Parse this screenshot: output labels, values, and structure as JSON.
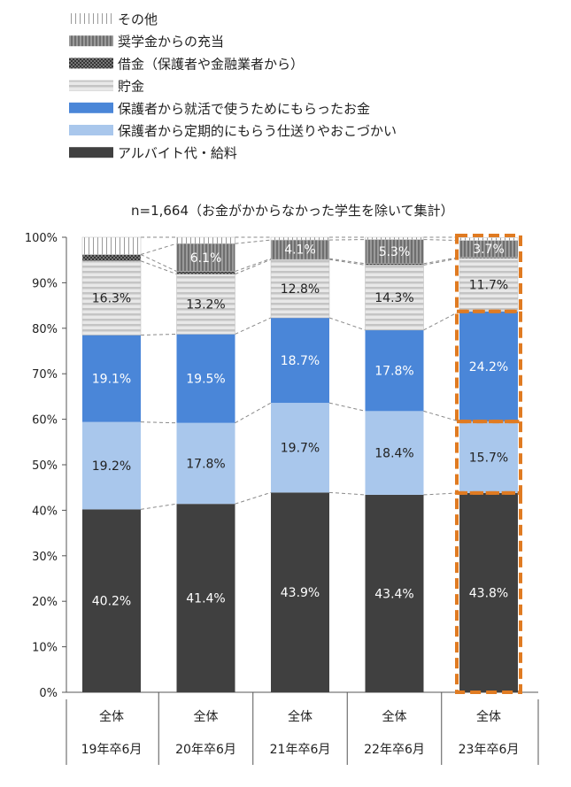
{
  "chart_data": {
    "type": "bar",
    "stacked": true,
    "note": "n=1,664（お金がかからなかった学生を除いて集計）",
    "categories": [
      {
        "line1": "全体",
        "line2": "19年卒6月"
      },
      {
        "line1": "全体",
        "line2": "20年卒6月"
      },
      {
        "line1": "全体",
        "line2": "21年卒6月"
      },
      {
        "line1": "全体",
        "line2": "22年卒6月"
      },
      {
        "line1": "全体",
        "line2": "23年卒6月"
      }
    ],
    "ylim": [
      0,
      100
    ],
    "yticks": [
      "0%",
      "10%",
      "20%",
      "30%",
      "40%",
      "50%",
      "60%",
      "70%",
      "80%",
      "90%",
      "100%"
    ],
    "series": [
      {
        "name": "アルバイト代・給料",
        "values": [
          40.2,
          41.4,
          43.9,
          43.4,
          43.8
        ],
        "labels": [
          "40.2%",
          "41.4%",
          "43.9%",
          "43.4%",
          "43.8%"
        ],
        "color": "#404040",
        "pattern": "solid",
        "label_color": "#ffffff"
      },
      {
        "name": "保護者から定期的にもらう仕送りやおこづかい",
        "values": [
          19.2,
          17.8,
          19.7,
          18.4,
          15.7
        ],
        "labels": [
          "19.2%",
          "17.8%",
          "19.7%",
          "18.4%",
          "15.7%"
        ],
        "color": "#a9c7ec",
        "pattern": "solid",
        "label_color": "#222222"
      },
      {
        "name": "保護者から就活で使うためにもらったお金",
        "values": [
          19.1,
          19.5,
          18.7,
          17.8,
          24.2
        ],
        "labels": [
          "19.1%",
          "19.5%",
          "18.7%",
          "17.8%",
          "24.2%"
        ],
        "color": "#4a86d8",
        "pattern": "solid",
        "label_color": "#ffffff"
      },
      {
        "name": "貯金",
        "values": [
          16.3,
          13.2,
          12.8,
          14.3,
          11.7
        ],
        "labels": [
          "16.3%",
          "13.2%",
          "12.8%",
          "14.3%",
          "11.7%"
        ],
        "color": "#dcdcdc",
        "pattern": "hstripe",
        "label_color": "#222222"
      },
      {
        "name": "借金（保護者や金融業者から）",
        "values": [
          1.4,
          0.6,
          0.2,
          0.3,
          0.2
        ],
        "labels": [
          "",
          "",
          "",
          "",
          ""
        ],
        "color": "#555555",
        "pattern": "dots",
        "label_color": "#222222"
      },
      {
        "name": "奨学金からの充当",
        "values": [
          0.0,
          6.1,
          4.1,
          5.3,
          3.7
        ],
        "labels": [
          "",
          "6.1%",
          "4.1%",
          "5.3%",
          "3.7%"
        ],
        "color": "#8c8c8c",
        "pattern": "vstripe",
        "label_color": "#ffffff"
      },
      {
        "name": "その他",
        "values": [
          3.8,
          1.4,
          0.6,
          0.5,
          0.6
        ],
        "labels": [
          "",
          "",
          "",
          "",
          ""
        ],
        "color": "#f2f2f2",
        "pattern": "vline",
        "label_color": "#222222"
      }
    ],
    "highlight_index": 4,
    "highlight_color": "#e07b22",
    "legend_placement": "top-left",
    "grid": false
  }
}
